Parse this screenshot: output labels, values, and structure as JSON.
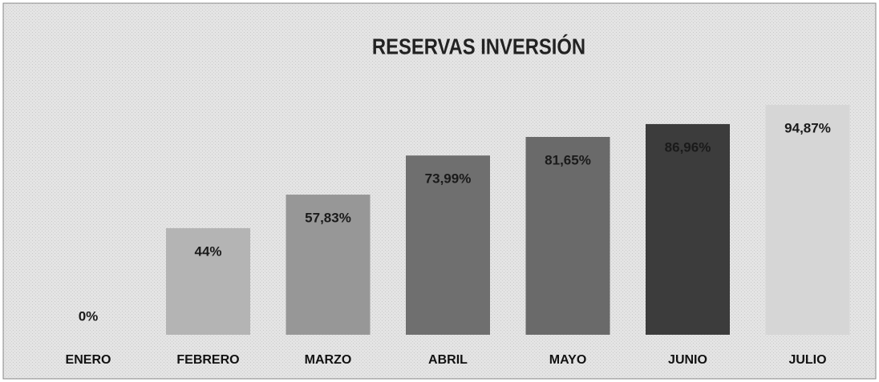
{
  "chart_data": {
    "type": "bar",
    "title": "RESERVAS INVERSIÓN",
    "categories": [
      "ENERO",
      "FEBRERO",
      "MARZO",
      "ABRIL",
      "MAYO",
      "JUNIO",
      "JULIO"
    ],
    "values": [
      0,
      44,
      57.83,
      73.99,
      81.65,
      86.96,
      94.87
    ],
    "value_labels": [
      "0%",
      "44%",
      "57,83%",
      "73,99%",
      "81,65%",
      "86,96%",
      "94,87%"
    ],
    "colors": [
      "#b0b0b0",
      "#b4b4b4",
      "#979797",
      "#6f6f6f",
      "#6a6a6a",
      "#3c3c3c",
      "#d6d6d6"
    ]
  }
}
